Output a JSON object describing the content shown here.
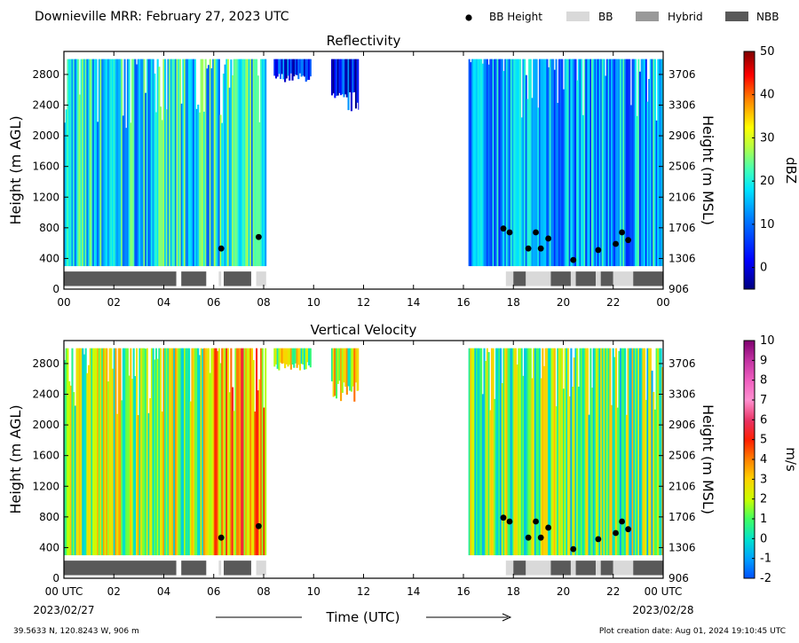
{
  "header": {
    "title": "Downieville MRR:  February 27, 2023 UTC",
    "legend": [
      {
        "label": "BB Height",
        "kind": "dot",
        "color": "#000000"
      },
      {
        "label": "BB",
        "kind": "box",
        "color": "#d9d9d9"
      },
      {
        "label": "Hybrid",
        "kind": "box",
        "color": "#999999"
      },
      {
        "label": "NBB",
        "kind": "box",
        "color": "#595959"
      }
    ]
  },
  "footer": {
    "location": "39.5633 N, 120.8243 W, 906 m",
    "created": "Plot creation date: Aug 01, 2024 19:10:45 UTC",
    "xlabel": "Time (UTC)",
    "date_start": "2023/02/27",
    "date_end": "2023/02/28"
  },
  "chart_data": [
    {
      "type": "heatmap",
      "title": "Reflectivity",
      "ylabel": "Height (m AGL)",
      "ylabel_right": "Height (m MSL)",
      "colorbar_label": "dBZ",
      "colorbar_ticks": [
        "50",
        "40",
        "30",
        "20",
        "10",
        "0"
      ],
      "colorbar_range": [
        -5,
        50
      ],
      "xlim": [
        0,
        24
      ],
      "ylim": [
        0,
        3100
      ],
      "x_ticks": [
        "00",
        "02",
        "04",
        "06",
        "08",
        "10",
        "12",
        "14",
        "16",
        "18",
        "20",
        "22",
        "00"
      ],
      "y_ticks": [
        "0",
        "400",
        "800",
        "1200",
        "1600",
        "2000",
        "2400",
        "2800"
      ],
      "y_ticks_right": [
        "906",
        "1306",
        "1706",
        "2106",
        "2506",
        "2906",
        "3306",
        "3706"
      ],
      "echo_segments": [
        {
          "start": 0.0,
          "end": 8.1,
          "top": 3000,
          "bottom": 300,
          "center": 18
        },
        {
          "start": 8.4,
          "end": 9.9,
          "top": 3000,
          "bottom": 2700,
          "center": 6
        },
        {
          "start": 10.7,
          "end": 11.8,
          "top": 3000,
          "bottom": 2300,
          "center": 4
        },
        {
          "start": 16.2,
          "end": 24.0,
          "top": 3000,
          "bottom": 300,
          "center": 14
        }
      ],
      "bb_heights": [
        {
          "t": 6.3,
          "h": 530
        },
        {
          "t": 7.8,
          "h": 680
        },
        {
          "t": 17.6,
          "h": 790
        },
        {
          "t": 17.85,
          "h": 740
        },
        {
          "t": 18.6,
          "h": 530
        },
        {
          "t": 18.9,
          "h": 740
        },
        {
          "t": 19.1,
          "h": 530
        },
        {
          "t": 19.4,
          "h": 660
        },
        {
          "t": 20.4,
          "h": 380
        },
        {
          "t": 21.4,
          "h": 510
        },
        {
          "t": 22.1,
          "h": 590
        },
        {
          "t": 22.35,
          "h": 740
        },
        {
          "t": 22.6,
          "h": 640
        }
      ],
      "bb_type_bar": [
        {
          "start": 0.0,
          "end": 4.5,
          "type": "NBB"
        },
        {
          "start": 4.7,
          "end": 5.7,
          "type": "NBB"
        },
        {
          "start": 6.2,
          "end": 6.3,
          "type": "BB"
        },
        {
          "start": 6.4,
          "end": 7.5,
          "type": "NBB"
        },
        {
          "start": 7.7,
          "end": 8.1,
          "type": "BB"
        },
        {
          "start": 17.7,
          "end": 18.0,
          "type": "BB"
        },
        {
          "start": 18.0,
          "end": 18.5,
          "type": "NBB"
        },
        {
          "start": 18.5,
          "end": 19.5,
          "type": "BB"
        },
        {
          "start": 19.5,
          "end": 20.3,
          "type": "NBB"
        },
        {
          "start": 20.3,
          "end": 20.5,
          "type": "BB"
        },
        {
          "start": 20.5,
          "end": 21.3,
          "type": "NBB"
        },
        {
          "start": 21.3,
          "end": 21.5,
          "type": "BB"
        },
        {
          "start": 21.5,
          "end": 22.0,
          "type": "NBB"
        },
        {
          "start": 22.0,
          "end": 22.8,
          "type": "BB"
        },
        {
          "start": 22.8,
          "end": 24.0,
          "type": "NBB"
        }
      ]
    },
    {
      "type": "heatmap",
      "title": "Vertical Velocity",
      "ylabel": "Height (m AGL)",
      "ylabel_right": "Height (m MSL)",
      "colorbar_label": "m/s",
      "colorbar_ticks": [
        "10",
        "9",
        "8",
        "7",
        "6",
        "5",
        "4",
        "3",
        "2",
        "1",
        "0",
        "-1",
        "-2"
      ],
      "colorbar_range": [
        -2,
        10
      ],
      "xlim": [
        0,
        24
      ],
      "ylim": [
        0,
        3100
      ],
      "x_ticks": [
        "00 UTC",
        "02",
        "04",
        "06",
        "08",
        "10",
        "12",
        "14",
        "16",
        "18",
        "20",
        "22",
        "00 UTC"
      ],
      "y_ticks": [
        "0",
        "400",
        "800",
        "1200",
        "1600",
        "2000",
        "2400",
        "2800"
      ],
      "y_ticks_right": [
        "906",
        "1306",
        "1706",
        "2106",
        "2506",
        "2906",
        "3306",
        "3706"
      ],
      "echo_segments": [
        {
          "start": 0.0,
          "end": 6.0,
          "top": 3000,
          "bottom": 300,
          "center": 1.8
        },
        {
          "start": 6.0,
          "end": 8.1,
          "top": 3000,
          "bottom": 300,
          "center": 3.5
        },
        {
          "start": 8.4,
          "end": 9.9,
          "top": 3000,
          "bottom": 2700,
          "center": 2.0
        },
        {
          "start": 10.7,
          "end": 11.8,
          "top": 3000,
          "bottom": 2300,
          "center": 2.2
        },
        {
          "start": 16.2,
          "end": 24.0,
          "top": 3000,
          "bottom": 300,
          "center": 1.2
        }
      ],
      "bb_heights": [
        {
          "t": 6.3,
          "h": 530
        },
        {
          "t": 7.8,
          "h": 680
        },
        {
          "t": 17.6,
          "h": 790
        },
        {
          "t": 17.85,
          "h": 740
        },
        {
          "t": 18.6,
          "h": 530
        },
        {
          "t": 18.9,
          "h": 740
        },
        {
          "t": 19.1,
          "h": 530
        },
        {
          "t": 19.4,
          "h": 660
        },
        {
          "t": 20.4,
          "h": 380
        },
        {
          "t": 21.4,
          "h": 510
        },
        {
          "t": 22.1,
          "h": 590
        },
        {
          "t": 22.35,
          "h": 740
        },
        {
          "t": 22.6,
          "h": 640
        }
      ],
      "bb_type_bar": [
        {
          "start": 0.0,
          "end": 4.5,
          "type": "NBB"
        },
        {
          "start": 4.7,
          "end": 5.7,
          "type": "NBB"
        },
        {
          "start": 6.2,
          "end": 6.3,
          "type": "BB"
        },
        {
          "start": 6.4,
          "end": 7.5,
          "type": "NBB"
        },
        {
          "start": 7.7,
          "end": 8.1,
          "type": "BB"
        },
        {
          "start": 17.7,
          "end": 18.0,
          "type": "BB"
        },
        {
          "start": 18.0,
          "end": 18.5,
          "type": "NBB"
        },
        {
          "start": 18.5,
          "end": 19.5,
          "type": "BB"
        },
        {
          "start": 19.5,
          "end": 20.3,
          "type": "NBB"
        },
        {
          "start": 20.3,
          "end": 20.5,
          "type": "BB"
        },
        {
          "start": 20.5,
          "end": 21.3,
          "type": "NBB"
        },
        {
          "start": 21.3,
          "end": 21.5,
          "type": "BB"
        },
        {
          "start": 21.5,
          "end": 22.0,
          "type": "NBB"
        },
        {
          "start": 22.0,
          "end": 22.8,
          "type": "BB"
        },
        {
          "start": 22.8,
          "end": 24.0,
          "type": "NBB"
        }
      ]
    }
  ]
}
